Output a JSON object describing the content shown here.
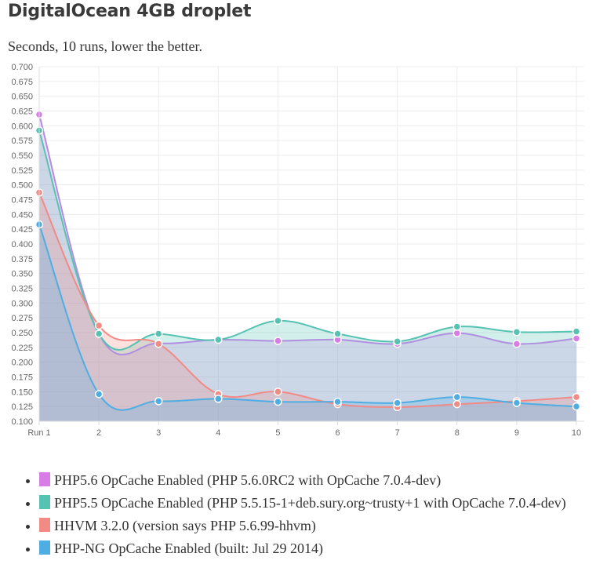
{
  "page": {
    "title": "DigitalOcean 4GB droplet",
    "subtitle": "Seconds, 10 runs, lower the better."
  },
  "chart_data": {
    "type": "area",
    "categories": [
      "Run 1",
      "2",
      "3",
      "4",
      "5",
      "6",
      "7",
      "8",
      "9",
      "10"
    ],
    "ylim": [
      0.1,
      0.7
    ],
    "yticks": [
      "0.700",
      "0.675",
      "0.650",
      "0.625",
      "0.600",
      "0.575",
      "0.550",
      "0.525",
      "0.500",
      "0.475",
      "0.450",
      "0.425",
      "0.400",
      "0.375",
      "0.350",
      "0.325",
      "0.300",
      "0.275",
      "0.250",
      "0.225",
      "0.200",
      "0.175",
      "0.150",
      "0.125",
      "0.100"
    ],
    "grid": true,
    "legend_position": "bottom",
    "series": [
      {
        "name": "PHP5.6 OpCache Enabled (PHP 5.6.0RC2 with OpCache 7.0.4-dev)",
        "color": "#d97de6",
        "line": "#b08ee0",
        "values": [
          0.619,
          0.248,
          0.232,
          0.238,
          0.236,
          0.238,
          0.231,
          0.249,
          0.231,
          0.24
        ]
      },
      {
        "name": "PHP5.5 OpCache Enabled (PHP 5.5.15-1+deb.sury.org~trusty+1 with OpCache 7.0.4-dev)",
        "color": "#56c3b2",
        "line": "#56c3b2",
        "values": [
          0.592,
          0.248,
          0.248,
          0.238,
          0.27,
          0.248,
          0.235,
          0.26,
          0.251,
          0.252
        ]
      },
      {
        "name": "HHVM 3.2.0 (version says PHP 5.6.99-hhvm)",
        "color": "#f28a85",
        "line": "#f28a85",
        "values": [
          0.487,
          0.262,
          0.231,
          0.146,
          0.15,
          0.129,
          0.124,
          0.129,
          0.134,
          0.141
        ]
      },
      {
        "name": "PHP-NG OpCache Enabled (built: Jul 29 2014)",
        "color": "#4eaee3",
        "line": "#4eaee3",
        "values": [
          0.433,
          0.146,
          0.134,
          0.138,
          0.133,
          0.133,
          0.131,
          0.141,
          0.131,
          0.125
        ]
      }
    ]
  }
}
